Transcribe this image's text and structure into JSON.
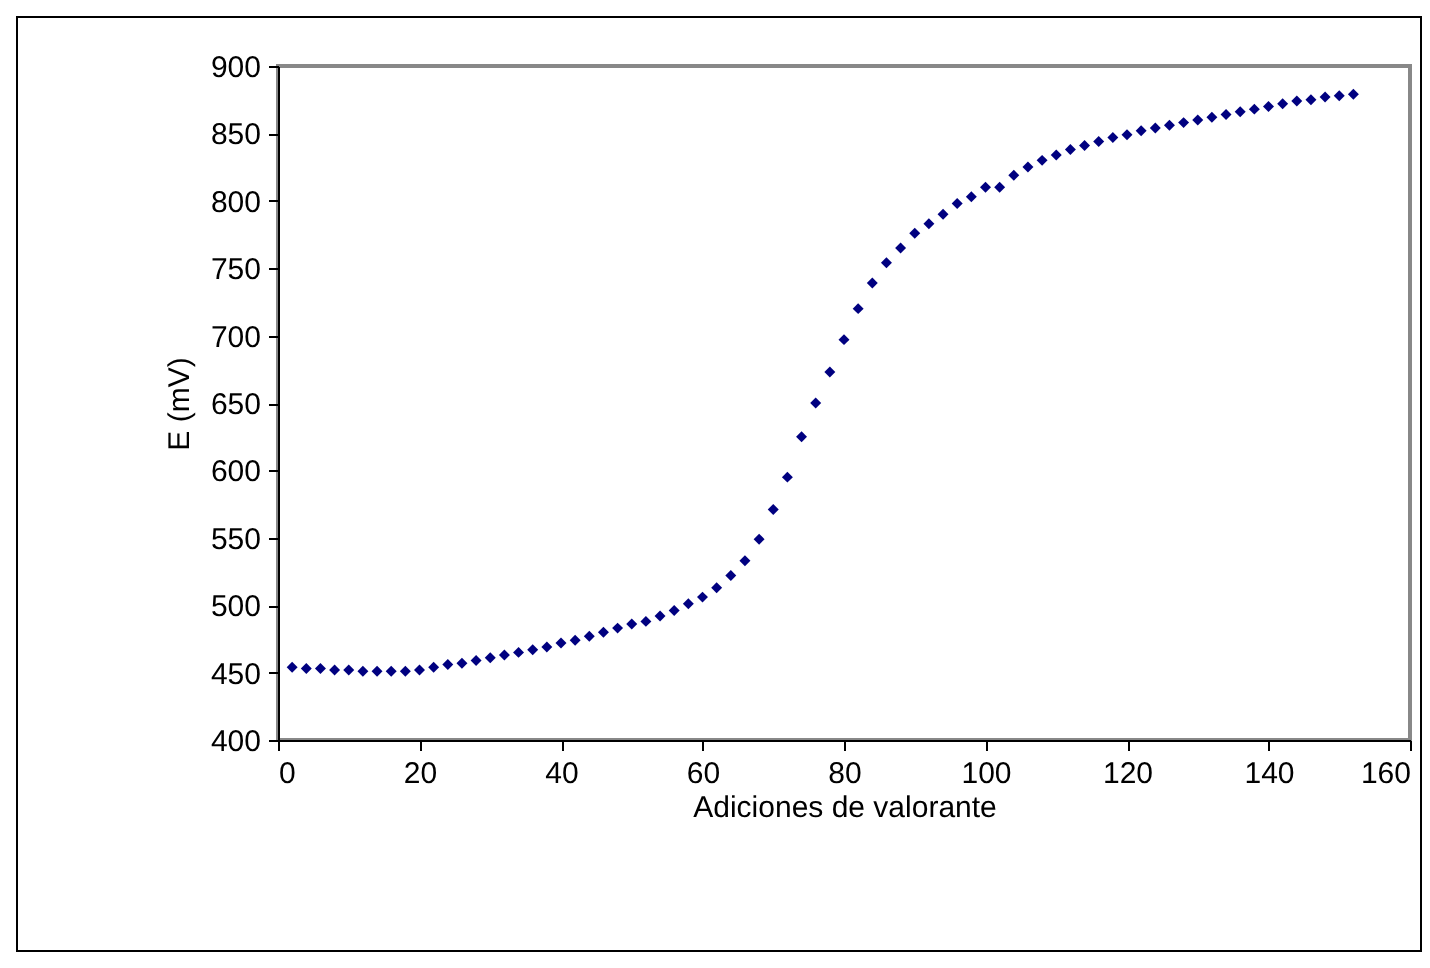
{
  "chart_data": {
    "type": "scatter",
    "xlabel": "Adiciones de valorante",
    "ylabel": "E (mV)",
    "x": [
      2,
      4,
      6,
      8,
      10,
      12,
      14,
      16,
      18,
      20,
      22,
      24,
      26,
      28,
      30,
      32,
      34,
      36,
      38,
      40,
      42,
      44,
      46,
      48,
      50,
      52,
      54,
      56,
      58,
      60,
      62,
      64,
      66,
      68,
      70,
      72,
      74,
      76,
      78,
      80,
      82,
      84,
      86,
      88,
      90,
      92,
      94,
      96,
      98,
      100,
      102,
      104,
      106,
      108,
      110,
      112,
      114,
      116,
      118,
      120,
      122,
      124,
      126,
      128,
      130,
      132,
      134,
      136,
      138,
      140,
      142,
      144,
      146,
      148,
      150,
      152
    ],
    "series": [
      {
        "color": "#000080",
        "values": [
          454,
          453,
          453,
          452,
          452,
          451,
          451,
          451,
          451,
          452,
          454,
          456,
          457,
          459,
          461,
          463,
          465,
          467,
          469,
          472,
          474,
          477,
          480,
          483,
          486,
          488,
          492,
          496,
          501,
          506,
          513,
          522,
          533,
          549,
          571,
          595,
          625,
          650,
          673,
          697,
          720,
          739,
          754,
          765,
          776,
          783,
          790,
          798,
          803,
          810,
          810,
          819,
          825,
          830,
          834,
          838,
          841,
          844,
          847,
          849,
          852,
          854,
          856,
          858,
          860,
          862,
          864,
          866,
          868,
          870,
          872,
          874,
          875,
          877,
          878,
          879
        ]
      }
    ],
    "xlim": [
      0,
      160
    ],
    "xticks": [
      0,
      20,
      40,
      60,
      80,
      100,
      120,
      140,
      160
    ],
    "ylim": [
      400,
      900
    ],
    "yticks": [
      400,
      450,
      500,
      550,
      600,
      650,
      700,
      750,
      800,
      850,
      900
    ],
    "grid": false,
    "marker": "diamond"
  }
}
